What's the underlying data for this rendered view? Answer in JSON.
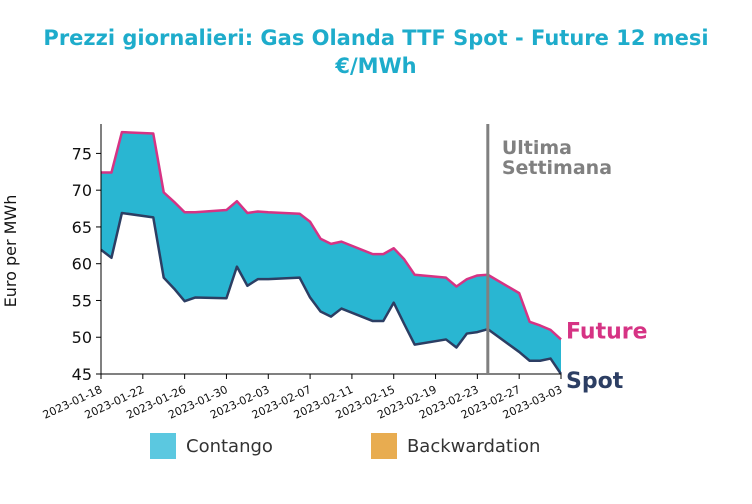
{
  "title_line1": "Prezzi giornalieri: Gas Olanda TTF Spot - Future 12 mesi",
  "title_line2": "€/MWh",
  "chart_data": {
    "type": "area",
    "ylabel": "Euro per MWh",
    "xlabel": "",
    "ylim": [
      45,
      79
    ],
    "yticks": [
      45,
      50,
      55,
      60,
      65,
      70,
      75
    ],
    "xlim": [
      "2023-01-18",
      "2023-03-03"
    ],
    "xticks": [
      "2023-01-18",
      "2023-01-22",
      "2023-01-26",
      "2023-01-30",
      "2023-02-03",
      "2023-02-07",
      "2023-02-11",
      "2023-02-15",
      "2023-02-19",
      "2023-02-23",
      "2023-02-27",
      "2023-03-03"
    ],
    "x": [
      "2023-01-18",
      "2023-01-19",
      "2023-01-20",
      "2023-01-23",
      "2023-01-24",
      "2023-01-25",
      "2023-01-26",
      "2023-01-27",
      "2023-01-30",
      "2023-01-31",
      "2023-02-01",
      "2023-02-02",
      "2023-02-03",
      "2023-02-06",
      "2023-02-07",
      "2023-02-08",
      "2023-02-09",
      "2023-02-10",
      "2023-02-13",
      "2023-02-14",
      "2023-02-15",
      "2023-02-16",
      "2023-02-17",
      "2023-02-20",
      "2023-02-21",
      "2023-02-22",
      "2023-02-23",
      "2023-02-24",
      "2023-02-27",
      "2023-02-28",
      "2023-03-01",
      "2023-03-02",
      "2023-03-03"
    ],
    "series": [
      {
        "name": "Future",
        "color": "#d63384",
        "values": [
          72.4,
          72.4,
          77.9,
          77.7,
          69.7,
          68.4,
          67.0,
          67.0,
          67.3,
          68.5,
          66.9,
          67.1,
          67.0,
          66.8,
          65.7,
          63.4,
          62.7,
          63.0,
          61.3,
          61.3,
          62.1,
          60.6,
          58.5,
          58.1,
          56.9,
          57.9,
          58.4,
          58.5,
          56.0,
          52.1,
          51.6,
          51.0,
          49.7
        ]
      },
      {
        "name": "Spot",
        "color": "#2c3e63",
        "values": [
          61.9,
          60.8,
          66.9,
          66.3,
          58.1,
          56.6,
          54.9,
          55.4,
          55.3,
          59.6,
          57.0,
          57.9,
          57.9,
          58.1,
          55.4,
          53.5,
          52.8,
          53.9,
          52.2,
          52.2,
          54.7,
          51.8,
          49.0,
          49.7,
          48.6,
          50.5,
          50.7,
          51.1,
          48.0,
          46.8,
          46.8,
          47.1,
          45.0
        ]
      }
    ],
    "fill_colors": {
      "contango": "#29b6d2",
      "backwardation": "#f0a030"
    },
    "annotation": {
      "date": "2023-02-24",
      "text_line1": "Ultima",
      "text_line2": "Settimana",
      "line_color": "#808080"
    },
    "end_labels": {
      "future": "Future",
      "spot": "Spot"
    },
    "legend": {
      "position": "bottom",
      "items": [
        {
          "label": "Contango",
          "color": "#5bc8e0"
        },
        {
          "label": "Backwardation",
          "color": "#e8ac50"
        }
      ]
    }
  }
}
